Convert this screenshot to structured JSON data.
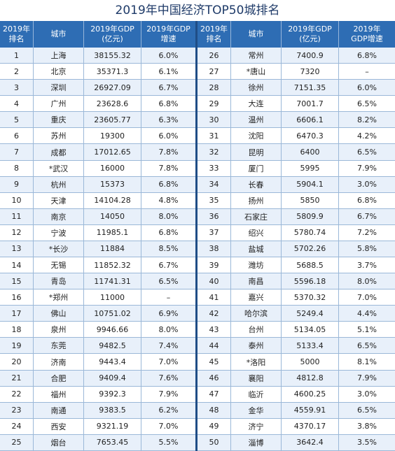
{
  "title": "2019年中国经济TOP50城排名",
  "headers": {
    "left": {
      "rank": "2019年\n排名",
      "city": "城市",
      "gdp": "2019年GDP\n(亿元)",
      "growth": "2019年GDP\n增速"
    },
    "right": {
      "rank": "2019年\n排名",
      "city": "城市",
      "gdp": "2019年GDP\n(亿元)",
      "growth": "2019年\nGDP增速"
    }
  },
  "rows": [
    {
      "rank": "1",
      "city": "上海",
      "gdp": "38155.32",
      "growth": "6.0%"
    },
    {
      "rank": "2",
      "city": "北京",
      "gdp": "35371.3",
      "growth": "6.1%"
    },
    {
      "rank": "3",
      "city": "深圳",
      "gdp": "26927.09",
      "growth": "6.7%"
    },
    {
      "rank": "4",
      "city": "广州",
      "gdp": "23628.6",
      "growth": "6.8%"
    },
    {
      "rank": "5",
      "city": "重庆",
      "gdp": "23605.77",
      "growth": "6.3%"
    },
    {
      "rank": "6",
      "city": "苏州",
      "gdp": "19300",
      "growth": "6.0%"
    },
    {
      "rank": "7",
      "city": "成都",
      "gdp": "17012.65",
      "growth": "7.8%"
    },
    {
      "rank": "8",
      "city": "*武汉",
      "gdp": "16000",
      "growth": "7.8%"
    },
    {
      "rank": "9",
      "city": "杭州",
      "gdp": "15373",
      "growth": "6.8%"
    },
    {
      "rank": "10",
      "city": "天津",
      "gdp": "14104.28",
      "growth": "4.8%"
    },
    {
      "rank": "11",
      "city": "南京",
      "gdp": "14050",
      "growth": "8.0%"
    },
    {
      "rank": "12",
      "city": "宁波",
      "gdp": "11985.1",
      "growth": "6.8%"
    },
    {
      "rank": "13",
      "city": "*长沙",
      "gdp": "11884",
      "growth": "8.5%"
    },
    {
      "rank": "14",
      "city": "无锡",
      "gdp": "11852.32",
      "growth": "6.7%"
    },
    {
      "rank": "15",
      "city": "青岛",
      "gdp": "11741.31",
      "growth": "6.5%"
    },
    {
      "rank": "16",
      "city": "*郑州",
      "gdp": "11000",
      "growth": "–"
    },
    {
      "rank": "17",
      "city": "佛山",
      "gdp": "10751.02",
      "growth": "6.9%"
    },
    {
      "rank": "18",
      "city": "泉州",
      "gdp": "9946.66",
      "growth": "8.0%"
    },
    {
      "rank": "19",
      "city": "东莞",
      "gdp": "9482.5",
      "growth": "7.4%"
    },
    {
      "rank": "20",
      "city": "济南",
      "gdp": "9443.4",
      "growth": "7.0%"
    },
    {
      "rank": "21",
      "city": "合肥",
      "gdp": "9409.4",
      "growth": "7.6%"
    },
    {
      "rank": "22",
      "city": "福州",
      "gdp": "9392.3",
      "growth": "7.9%"
    },
    {
      "rank": "23",
      "city": "南通",
      "gdp": "9383.5",
      "growth": "6.2%"
    },
    {
      "rank": "24",
      "city": "西安",
      "gdp": "9321.19",
      "growth": "7.0%"
    },
    {
      "rank": "25",
      "city": "烟台",
      "gdp": "7653.45",
      "growth": "5.5%"
    },
    {
      "rank": "26",
      "city": "常州",
      "gdp": "7400.9",
      "growth": "6.8%"
    },
    {
      "rank": "27",
      "city": "*唐山",
      "gdp": "7320",
      "growth": "–"
    },
    {
      "rank": "28",
      "city": "徐州",
      "gdp": "7151.35",
      "growth": "6.0%"
    },
    {
      "rank": "29",
      "city": "大连",
      "gdp": "7001.7",
      "growth": "6.5%"
    },
    {
      "rank": "30",
      "city": "温州",
      "gdp": "6606.1",
      "growth": "8.2%"
    },
    {
      "rank": "31",
      "city": "沈阳",
      "gdp": "6470.3",
      "growth": "4.2%"
    },
    {
      "rank": "32",
      "city": "昆明",
      "gdp": "6400",
      "growth": "6.5%"
    },
    {
      "rank": "33",
      "city": "厦门",
      "gdp": "5995",
      "growth": "7.9%"
    },
    {
      "rank": "34",
      "city": "长春",
      "gdp": "5904.1",
      "growth": "3.0%"
    },
    {
      "rank": "35",
      "city": "扬州",
      "gdp": "5850",
      "growth": "6.8%"
    },
    {
      "rank": "36",
      "city": "石家庄",
      "gdp": "5809.9",
      "growth": "6.7%"
    },
    {
      "rank": "37",
      "city": "绍兴",
      "gdp": "5780.74",
      "growth": "7.2%"
    },
    {
      "rank": "38",
      "city": "盐城",
      "gdp": "5702.26",
      "growth": "5.8%"
    },
    {
      "rank": "39",
      "city": "潍坊",
      "gdp": "5688.5",
      "growth": "3.7%"
    },
    {
      "rank": "40",
      "city": "南昌",
      "gdp": "5596.18",
      "growth": "8.0%"
    },
    {
      "rank": "41",
      "city": "嘉兴",
      "gdp": "5370.32",
      "growth": "7.0%"
    },
    {
      "rank": "42",
      "city": "哈尔滨",
      "gdp": "5249.4",
      "growth": "4.4%"
    },
    {
      "rank": "43",
      "city": "台州",
      "gdp": "5134.05",
      "growth": "5.1%"
    },
    {
      "rank": "44",
      "city": "泰州",
      "gdp": "5133.4",
      "growth": "6.5%"
    },
    {
      "rank": "45",
      "city": "*洛阳",
      "gdp": "5000",
      "growth": "8.1%"
    },
    {
      "rank": "46",
      "city": "襄阳",
      "gdp": "4812.8",
      "growth": "7.9%"
    },
    {
      "rank": "47",
      "city": "临沂",
      "gdp": "4600.25",
      "growth": "3.0%"
    },
    {
      "rank": "48",
      "city": "金华",
      "gdp": "4559.91",
      "growth": "6.5%"
    },
    {
      "rank": "49",
      "city": "济宁",
      "gdp": "4370.17",
      "growth": "3.8%"
    },
    {
      "rank": "50",
      "city": "淄博",
      "gdp": "3642.4",
      "growth": "3.5%"
    }
  ]
}
